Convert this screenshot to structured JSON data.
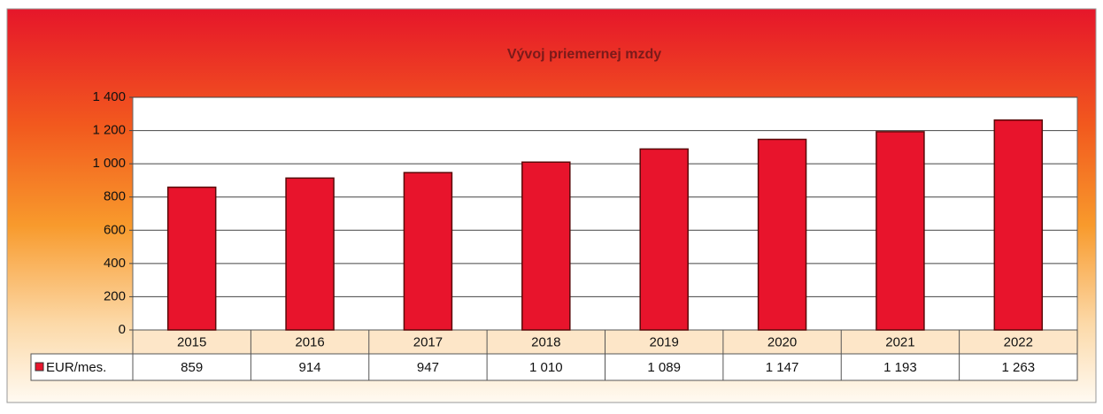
{
  "chart_data": {
    "type": "bar",
    "title": "Vývoj priemernej mzdy",
    "categories": [
      "2015",
      "2016",
      "2017",
      "2018",
      "2019",
      "2020",
      "2021",
      "2022"
    ],
    "series": [
      {
        "name": "EUR/mes.",
        "color": "#e8142c",
        "values": [
          859,
          914,
          947,
          1010,
          1089,
          1147,
          1193,
          1263
        ],
        "value_labels": [
          "859",
          "914",
          "947",
          "1 010",
          "1 089",
          "1 147",
          "1 193",
          "1 263"
        ]
      }
    ],
    "ylim": [
      0,
      1400
    ],
    "yticks": [
      0,
      200,
      400,
      600,
      800,
      {
        "value": 1000,
        "label": "1 000"
      },
      {
        "value": 1200,
        "label": "1 200"
      },
      {
        "value": 1400,
        "label": "1 400"
      }
    ],
    "grid": true
  }
}
